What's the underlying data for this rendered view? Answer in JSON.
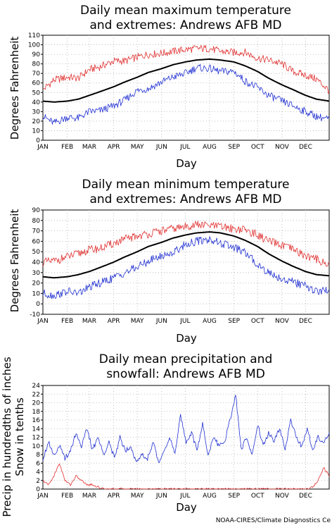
{
  "credit": "NOAA-CIRES/Climate Diagnostics Ce",
  "colors": {
    "mean": "#000000",
    "upper": "#e03030",
    "lower": "#2030d0",
    "grid": "#b0b0b0"
  },
  "chart_data": [
    {
      "type": "line",
      "title": [
        "Daily mean maximum temperature",
        "and extremes: Andrews AFB MD"
      ],
      "xlabel": "Day",
      "ylabel": "Degrees Fahrenheit",
      "x_tick_labels": [
        "JAN",
        "FEB",
        "MAR",
        "APR",
        "MAY",
        "JUN",
        "JUL",
        "AUG",
        "SEP",
        "OCT",
        "NOV",
        "DEC"
      ],
      "yticks": [
        0,
        10,
        20,
        30,
        40,
        50,
        60,
        70,
        80,
        90,
        100,
        110
      ],
      "ylim": [
        0,
        110
      ],
      "grid": true,
      "x": [
        1,
        15,
        32,
        46,
        60,
        74,
        91,
        105,
        121,
        135,
        152,
        166,
        182,
        196,
        213,
        227,
        244,
        258,
        274,
        288,
        305,
        319,
        335,
        349,
        365
      ],
      "series": [
        {
          "role": "mean",
          "values": [
            41,
            40,
            41,
            43,
            47,
            51,
            56,
            61,
            66,
            71,
            75,
            79,
            82,
            84,
            85,
            84,
            82,
            78,
            72,
            65,
            58,
            53,
            47,
            43,
            41
          ]
        },
        {
          "role": "upper",
          "values": [
            53,
            63,
            66,
            65,
            74,
            77,
            83,
            83,
            87,
            90,
            91,
            93,
            95,
            96,
            96,
            93,
            92,
            92,
            86,
            84,
            80,
            72,
            68,
            64,
            52
          ]
        },
        {
          "role": "lower",
          "values": [
            25,
            18,
            24,
            23,
            30,
            31,
            36,
            42,
            52,
            54,
            61,
            66,
            70,
            76,
            75,
            72,
            72,
            62,
            55,
            47,
            41,
            36,
            30,
            25,
            22
          ]
        }
      ]
    },
    {
      "type": "line",
      "title": [
        "Daily mean minimum temperature",
        "and extremes: Andrews AFB MD"
      ],
      "xlabel": "Day",
      "ylabel": "Degrees Fahrenheit",
      "x_tick_labels": [
        "JAN",
        "FEB",
        "MAR",
        "APR",
        "MAY",
        "JUN",
        "JUL",
        "AUG",
        "SEP",
        "OCT",
        "NOV",
        "DEC"
      ],
      "yticks": [
        -10,
        0,
        10,
        20,
        30,
        40,
        50,
        60,
        70,
        80,
        90
      ],
      "ylim": [
        -10,
        90
      ],
      "grid": true,
      "x": [
        1,
        15,
        32,
        46,
        60,
        74,
        91,
        105,
        121,
        135,
        152,
        166,
        182,
        196,
        213,
        227,
        244,
        258,
        274,
        288,
        305,
        319,
        335,
        349,
        365
      ],
      "series": [
        {
          "role": "mean",
          "values": [
            26,
            25,
            26,
            28,
            31,
            35,
            40,
            45,
            50,
            55,
            59,
            63,
            66,
            68,
            69,
            68,
            65,
            61,
            55,
            48,
            41,
            36,
            31,
            28,
            27
          ]
        },
        {
          "role": "upper",
          "values": [
            40,
            41,
            45,
            48,
            52,
            53,
            58,
            62,
            65,
            67,
            70,
            72,
            74,
            76,
            75,
            74,
            72,
            71,
            66,
            60,
            56,
            52,
            46,
            43,
            37
          ]
        },
        {
          "role": "lower",
          "values": [
            10,
            8,
            12,
            10,
            16,
            20,
            25,
            30,
            35,
            41,
            46,
            49,
            57,
            60,
            62,
            58,
            54,
            49,
            38,
            30,
            24,
            21,
            17,
            12,
            13
          ]
        }
      ]
    },
    {
      "type": "line",
      "title": [
        "Daily mean precipitation and",
        "snowfall: Andrews AFB MD"
      ],
      "xlabel": "Day",
      "ylabel": [
        "Precip in hundredths of inches",
        "Snow in tenths"
      ],
      "x_tick_labels": [
        "JAN",
        "FEB",
        "MAR",
        "APR",
        "MAY",
        "JUN",
        "JUL",
        "AUG",
        "SEP",
        "OCT",
        "NOV",
        "DEC"
      ],
      "yticks": [
        0,
        2,
        4,
        6,
        8,
        10,
        12,
        14,
        16,
        18,
        20,
        22,
        24
      ],
      "ylim": [
        0,
        24
      ],
      "grid": true,
      "x": [
        1,
        8,
        15,
        22,
        29,
        36,
        43,
        50,
        57,
        64,
        71,
        78,
        85,
        92,
        99,
        106,
        113,
        120,
        127,
        134,
        141,
        148,
        155,
        162,
        169,
        176,
        183,
        190,
        197,
        204,
        211,
        218,
        225,
        232,
        239,
        246,
        253,
        260,
        267,
        274,
        281,
        288,
        295,
        302,
        309,
        316,
        323,
        330,
        337,
        344,
        351,
        358,
        365
      ],
      "series": [
        {
          "role": "precip",
          "values": [
            7,
            11,
            8,
            10,
            7,
            9,
            13,
            10,
            14,
            9,
            12,
            8,
            11,
            7,
            12,
            9,
            10,
            6,
            8,
            7,
            11,
            6,
            9,
            12,
            8,
            17,
            11,
            13,
            9,
            15,
            8,
            12,
            10,
            11,
            16,
            22,
            9,
            12,
            8,
            15,
            10,
            13,
            11,
            14,
            9,
            16,
            12,
            10,
            14,
            9,
            12,
            11,
            13
          ]
        },
        {
          "role": "snow",
          "values": [
            2,
            1,
            3,
            6,
            2,
            1,
            3,
            2,
            1,
            1,
            0.5,
            0,
            0,
            0,
            0,
            0,
            0,
            0,
            0,
            0,
            0,
            0,
            0,
            0,
            0,
            0,
            0,
            0,
            0,
            0,
            0,
            0,
            0,
            0,
            0,
            0,
            0,
            0,
            0,
            0,
            0,
            0,
            0,
            0,
            0,
            0,
            0,
            0,
            0,
            0.5,
            2,
            5,
            3
          ]
        }
      ]
    }
  ]
}
